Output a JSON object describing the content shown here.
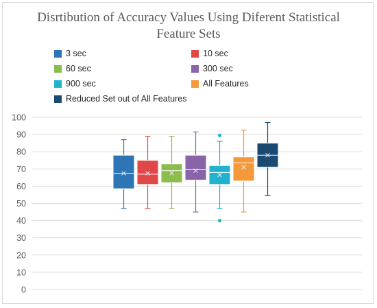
{
  "chart_data": {
    "type": "box",
    "title_line1": "Disrtibution of Accuracy Values Using Diferent Statistical",
    "title_line2": "Feature Sets",
    "xlabel": "",
    "ylabel": "",
    "ylim": [
      0,
      100
    ],
    "yticks": [
      0,
      10,
      20,
      30,
      40,
      50,
      60,
      70,
      80,
      90,
      100
    ],
    "grid": true,
    "legend_position": "top",
    "series": [
      {
        "name": "3 sec",
        "color": "#2e75b6",
        "min": 47,
        "q1": 58.5,
        "median": 67.5,
        "q3": 78,
        "max": 87,
        "mean": 67.5,
        "outliers": []
      },
      {
        "name": "10 sec",
        "color": "#e04848",
        "min": 47,
        "q1": 61,
        "median": 67,
        "q3": 75,
        "max": 89,
        "mean": 67.5,
        "outliers": []
      },
      {
        "name": "60 sec",
        "color": "#8cbc4c",
        "min": 47,
        "q1": 62,
        "median": 69,
        "q3": 73,
        "max": 89,
        "mean": 67.5,
        "outliers": []
      },
      {
        "name": "300 sec",
        "color": "#8a64a8",
        "min": 45,
        "q1": 63.5,
        "median": 69.5,
        "q3": 78,
        "max": 91.5,
        "mean": 69,
        "outliers": []
      },
      {
        "name": "900 sec",
        "color": "#22b2d0",
        "min": 47,
        "q1": 61,
        "median": 68,
        "q3": 72,
        "max": 86,
        "mean": 66.5,
        "outliers": [
          89.5,
          40
        ]
      },
      {
        "name": "All Features",
        "color": "#f5983a",
        "min": 45,
        "q1": 63,
        "median": 73.5,
        "q3": 77,
        "max": 92.5,
        "mean": 71,
        "outliers": []
      },
      {
        "name": "Reduced Set out of All Features",
        "color": "#1a4a72",
        "min": 54.5,
        "q1": 71,
        "median": 78,
        "q3": 85,
        "max": 97,
        "mean": 78,
        "outliers": []
      }
    ]
  }
}
